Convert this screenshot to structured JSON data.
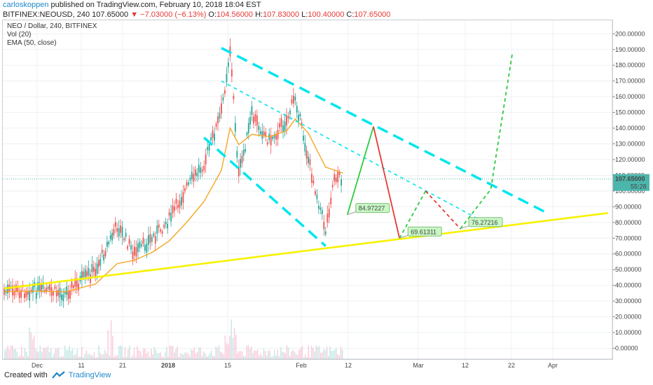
{
  "header": {
    "author": "carloskoppen",
    "published_text": " published on TradingView.com, February 10, 2018 18:04 EST",
    "symbol": "BITFINEX:NEOUSD, 240",
    "price": "107.65000",
    "change": "−7.03000 (−6.13%)",
    "o_label": "O:",
    "o_value": "104.56000",
    "h_label": "H:",
    "h_value": "107.83000",
    "l_label": "L:",
    "l_value": "100.40000",
    "c_label": "C:",
    "c_value": "107.65000"
  },
  "legend": {
    "title": "NEO / Dollar, 240, BITFINEX",
    "vol": "Vol (20)",
    "ema": "EMA (50, close)"
  },
  "footer": {
    "created_with": "Created with",
    "brand": "TradingView"
  },
  "colors": {
    "up": "#26a69a",
    "down": "#ef5350",
    "ema": "#f5a623",
    "support": "#f7f200",
    "channel": "#00e5ee",
    "projection_up": "#2ecc40",
    "projection_down": "#e53935",
    "price_tag": "#4db6ac"
  },
  "chart_data": {
    "type": "candlestick",
    "title": "NEO / Dollar, 240, BITFINEX",
    "ylim": [
      -5,
      205
    ],
    "y_ticks": [
      "200.00000",
      "190.00000",
      "180.00000",
      "170.00000",
      "160.00000",
      "150.00000",
      "140.00000",
      "130.00000",
      "120.00000",
      "110.00000",
      "100.00000",
      "90.00000",
      "80.00000",
      "70.00000",
      "60.00000",
      "50.00000",
      "40.00000",
      "30.00000",
      "20.00000",
      "10.00000",
      "0.00000"
    ],
    "x_ticks": [
      "Dec",
      "11",
      "21",
      "2018",
      "15",
      "Feb",
      "12",
      "Mar",
      "12",
      "22",
      "Apr"
    ],
    "last_price": {
      "value": 107.65,
      "label": "107.65000",
      "countdown": "55:28"
    },
    "support_line": {
      "from": {
        "date": "2017-11-24",
        "price": 38
      },
      "to": {
        "date": "2018-04-12",
        "price": 86
      }
    },
    "channel_lines": [
      {
        "from": {
          "date": "2018-01-13",
          "price": 191
        },
        "to": {
          "date": "2018-03-29",
          "price": 86
        }
      },
      {
        "from": {
          "date": "2018-01-13",
          "price": 170
        },
        "to": {
          "date": "2018-03-16",
          "price": 78
        }
      },
      {
        "from": {
          "date": "2018-01-09",
          "price": 134
        },
        "to": {
          "date": "2018-02-06",
          "price": 65
        }
      }
    ],
    "projections": [
      {
        "kind": "up",
        "style": "solid",
        "points": [
          {
            "date": "2018-02-11",
            "price": 85
          },
          {
            "date": "2018-02-17",
            "price": 141
          }
        ]
      },
      {
        "kind": "down",
        "style": "solid",
        "points": [
          {
            "date": "2018-02-17",
            "price": 141
          },
          {
            "date": "2018-02-23",
            "price": 70
          }
        ]
      },
      {
        "kind": "up",
        "style": "dashed",
        "points": [
          {
            "date": "2018-02-23",
            "price": 70
          },
          {
            "date": "2018-03-01",
            "price": 100
          }
        ]
      },
      {
        "kind": "down",
        "style": "dashed",
        "points": [
          {
            "date": "2018-03-01",
            "price": 100
          },
          {
            "date": "2018-03-09",
            "price": 76
          }
        ]
      },
      {
        "kind": "up",
        "style": "dashed",
        "points": [
          {
            "date": "2018-03-09",
            "price": 76
          },
          {
            "date": "2018-03-16",
            "price": 101
          },
          {
            "date": "2018-03-21",
            "price": 188
          }
        ]
      }
    ],
    "price_labels": [
      {
        "text": "84.97227",
        "date": "2018-02-11",
        "price": 85
      },
      {
        "text": "69.61311",
        "date": "2018-02-23",
        "price": 70
      },
      {
        "text": "76.27216",
        "date": "2018-03-09",
        "price": 76
      }
    ],
    "candles_close_approx": [
      {
        "date": "2017-11-24",
        "close": 36
      },
      {
        "date": "2017-12-01",
        "close": 37
      },
      {
        "date": "2017-12-08",
        "close": 35
      },
      {
        "date": "2017-12-15",
        "close": 50
      },
      {
        "date": "2017-12-20",
        "close": 78
      },
      {
        "date": "2017-12-24",
        "close": 60
      },
      {
        "date": "2017-12-28",
        "close": 70
      },
      {
        "date": "2018-01-01",
        "close": 82
      },
      {
        "date": "2018-01-05",
        "close": 102
      },
      {
        "date": "2018-01-09",
        "close": 118
      },
      {
        "date": "2018-01-13",
        "close": 150
      },
      {
        "date": "2018-01-15",
        "close": 190
      },
      {
        "date": "2018-01-17",
        "close": 110
      },
      {
        "date": "2018-01-20",
        "close": 148
      },
      {
        "date": "2018-01-24",
        "close": 132
      },
      {
        "date": "2018-01-28",
        "close": 145
      },
      {
        "date": "2018-01-30",
        "close": 160
      },
      {
        "date": "2018-02-02",
        "close": 120
      },
      {
        "date": "2018-02-06",
        "close": 75
      },
      {
        "date": "2018-02-08",
        "close": 110
      },
      {
        "date": "2018-02-10",
        "close": 107.65
      }
    ]
  }
}
